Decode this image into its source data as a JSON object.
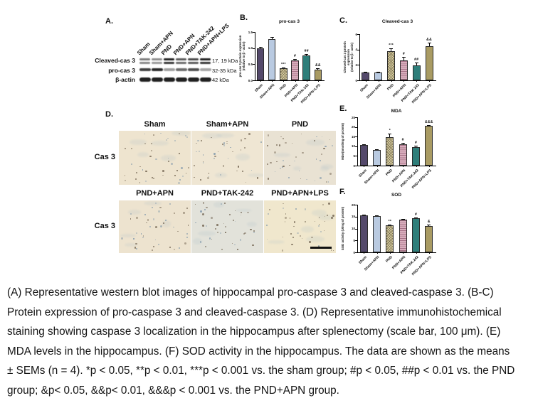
{
  "panel_labels": {
    "A": "A.",
    "B": "B.",
    "C": "C.",
    "D": "D.",
    "E": "E.",
    "F": "F."
  },
  "western_blot": {
    "lanes": [
      "Sham",
      "Sham+APN",
      "PND",
      "PND+APN",
      "PND+TAK-242",
      "PND+APN+LPS"
    ],
    "rows": [
      {
        "protein": "Cleaved-cas 3",
        "kda": "17, 19 kDa",
        "band_type": "double",
        "intensities": [
          0.5,
          0.4,
          1.0,
          0.68,
          0.78,
          1.0
        ]
      },
      {
        "protein": "pro-cas 3",
        "kda": "32-35 kDa",
        "band_type": "single",
        "intensities": [
          0.82,
          0.95,
          0.3,
          0.58,
          0.75,
          0.25
        ]
      },
      {
        "protein": "β-actin",
        "kda": "42 kDa",
        "band_type": "single",
        "intensities": [
          1,
          1,
          1,
          1,
          1,
          1
        ]
      }
    ]
  },
  "bar_styles": [
    {
      "pattern": "solid",
      "color": "#54496b"
    },
    {
      "pattern": "solid",
      "color": "#b9cae1"
    },
    {
      "pattern": "checker",
      "color": "#d8cfa4"
    },
    {
      "pattern": "hstripes",
      "color": "#d8aebd"
    },
    {
      "pattern": "solid",
      "color": "#2e7e7a"
    },
    {
      "pattern": "solid",
      "color": "#a99b63"
    }
  ],
  "chart_data": [
    {
      "id": "B",
      "type": "bar",
      "title": "pro-cas 3",
      "ylabel": "pro-cas 3 protein expression\n(relative to β - actin)",
      "categories": [
        "Sham",
        "Sham+APN",
        "PND",
        "PND+APN",
        "PND+TAK-242",
        "PND+APN+LPS"
      ],
      "values": [
        1.0,
        1.27,
        0.37,
        0.62,
        0.78,
        0.33
      ],
      "errors": [
        0.03,
        0.07,
        0.03,
        0.05,
        0.04,
        0.04
      ],
      "sig": [
        "",
        "",
        "***",
        "#",
        "##",
        "&&"
      ],
      "ylim": [
        0,
        1.5
      ],
      "yticks": [
        "0.0",
        "0.5",
        "1.0",
        "1.5"
      ]
    },
    {
      "id": "C",
      "type": "bar",
      "title": "Cleaved-cas 3",
      "ylabel": "Cleaved-cas 3 protein expression\n(relative to β - actin)",
      "categories": [
        "Sham",
        "Sham+APN",
        "PND",
        "PND+APN",
        "PND+TAK-242",
        "PND+APN+LPS"
      ],
      "values": [
        1.0,
        1.0,
        3.8,
        2.6,
        1.9,
        4.4
      ],
      "errors": [
        0.12,
        0.15,
        0.35,
        0.45,
        0.4,
        0.45
      ],
      "sig": [
        "",
        "",
        "***",
        "#",
        "##",
        "&&"
      ],
      "ylim": [
        0,
        6
      ],
      "yticks": [
        "0",
        "2",
        "4",
        "6"
      ]
    },
    {
      "id": "E",
      "type": "bar",
      "title": "MDA",
      "ylabel": "MDA(nmol/mg of protein)",
      "categories": [
        "Sham",
        "Sham+APN",
        "PND",
        "PND+APN",
        "PND+TAK-242",
        "PND+APN+LPS"
      ],
      "values": [
        10.8,
        8.0,
        14.8,
        10.9,
        9.7,
        20.5
      ],
      "errors": [
        0.4,
        0.3,
        1.6,
        1.0,
        0.5,
        0.4
      ],
      "sig": [
        "",
        "",
        "*",
        "#",
        "#",
        "&&&"
      ],
      "ylim": [
        0,
        25
      ],
      "yticks": [
        "0",
        "5",
        "10",
        "15",
        "20",
        "25"
      ]
    },
    {
      "id": "F",
      "type": "bar",
      "title": "SOD",
      "ylabel": "SOD activity (U/mg of protein)",
      "categories": [
        "Sham",
        "Sham+APN",
        "PND",
        "PND+APN",
        "PND+TAK-242",
        "PND+APN+LPS"
      ],
      "values": [
        15.5,
        15.3,
        11.2,
        13.7,
        14.2,
        11.0
      ],
      "errors": [
        0.3,
        0.3,
        0.4,
        0.4,
        0.5,
        0.7
      ],
      "sig": [
        "",
        "",
        "**",
        "",
        "#",
        "&"
      ],
      "ylim": [
        0,
        20
      ],
      "yticks": [
        "0",
        "5",
        "10",
        "15",
        "20"
      ]
    }
  ],
  "ihc": {
    "row_label": "Cas 3",
    "dot_colors": [
      "#6b5c49",
      "#7d95a9"
    ],
    "rows": [
      {
        "tiles": [
          {
            "label": "Sham",
            "bg": "#eee4cf"
          },
          {
            "label": "Sham+APN",
            "bg": "#efe6d3"
          },
          {
            "label": "PND",
            "bg": "#e9e2d3"
          }
        ]
      },
      {
        "tiles": [
          {
            "label": "PND+APN",
            "bg": "#ede3cf"
          },
          {
            "label": "PND+TAK-242",
            "bg": "#e2e2da"
          },
          {
            "label": "PND+APN+LPS",
            "bg": "#f0e7cd",
            "scale_bar": true
          }
        ]
      }
    ]
  },
  "caption": {
    "lines": [
      "(A) Representative western blot images of hippocampal pro-caspase 3 and cleaved-caspase 3. (B-C)",
      "Protein expression of pro-caspase 3 and cleaved-caspase 3. (D) Representative immunohistochemical",
      "staining showing caspase 3 localization in the hippocampus after splenectomy (scale bar, 100 μm). (E)",
      "MDA levels in the hippocampus. (F) SOD activity in the hippocampus. The data are shown as the means",
      "± SEMs (n = 4). *p < 0.05, **p < 0.01, ***p < 0.001 vs. the sham group; #p < 0.05, ##p < 0.01 vs. the PND",
      "group; &p< 0.05, &&p< 0.01, &&&p < 0.001 vs. the PND+APN group."
    ]
  }
}
